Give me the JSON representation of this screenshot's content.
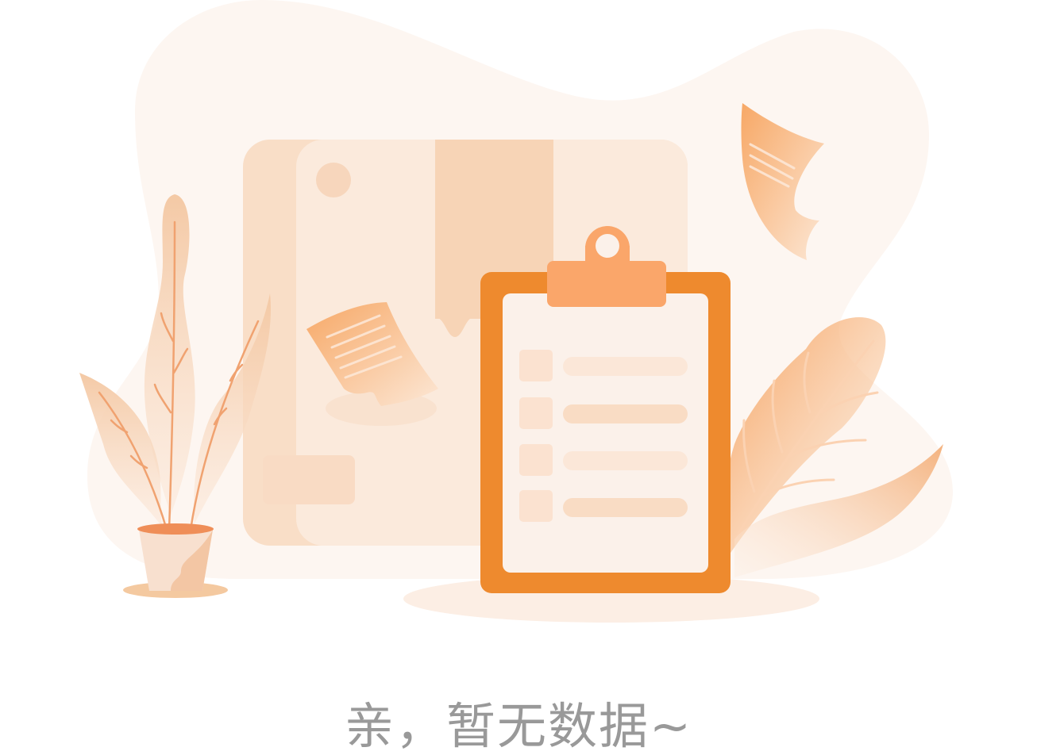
{
  "empty_state": {
    "message": "亲，暂无数据~",
    "illustration_icon": "empty-clipboard-illustration"
  },
  "colors": {
    "accent": "#EE8A2E",
    "accent_light": "#FAA66A",
    "paper": "#FDF3EC",
    "box": "#F9DFC8",
    "text_muted": "#999999"
  }
}
